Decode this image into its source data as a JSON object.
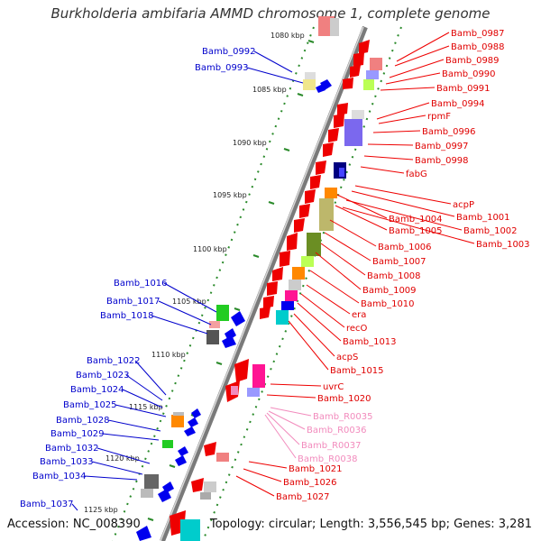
{
  "title": "Burkholderia ambifaria AMMD chromosome 1, complete genome",
  "accession": "Accession: NC_008390",
  "topology": "Topology: circular; Length: 3,556,545 bp; Genes: 3,281",
  "ruler": [
    {
      "label": "1080 kbp"
    },
    {
      "label": "1085 kbp"
    },
    {
      "label": "1090 kbp"
    },
    {
      "label": "1095 kbp"
    },
    {
      "label": "1100 kbp"
    },
    {
      "label": "1105 kbp"
    },
    {
      "label": "1110 kbp"
    },
    {
      "label": "1115 kbp"
    },
    {
      "label": "1120 kbp"
    },
    {
      "label": "1125 kbp"
    }
  ],
  "right_genes": [
    "Bamb_0987",
    "Bamb_0988",
    "Bamb_0989",
    "Bamb_0990",
    "Bamb_0991",
    "Bamb_0994",
    "rpmF",
    "Bamb_0996",
    "Bamb_0997",
    "Bamb_0998",
    "fabG",
    "acpP",
    "Bamb_1001",
    "Bamb_1002",
    "Bamb_1003",
    "Bamb_1004",
    "Bamb_1005",
    "Bamb_1006",
    "Bamb_1007",
    "Bamb_1008",
    "Bamb_1009",
    "Bamb_1010",
    "era",
    "recO",
    "Bamb_1013",
    "acpS",
    "Bamb_1015",
    "uvrC",
    "Bamb_1020",
    "Bamb_1021",
    "Bamb_1026",
    "Bamb_1027"
  ],
  "rna_genes": [
    "Bamb_R0035",
    "Bamb_R0036",
    "Bamb_R0037",
    "Bamb_R0038"
  ],
  "left_genes": [
    "Bamb_0992",
    "Bamb_0993",
    "Bamb_1016",
    "Bamb_1017",
    "Bamb_1018",
    "Bamb_1022",
    "Bamb_1023",
    "Bamb_1024",
    "Bamb_1025",
    "Bamb_1028",
    "Bamb_1029",
    "Bamb_1032",
    "Bamb_1033",
    "Bamb_1034",
    "Bamb_1037"
  ],
  "colors": {
    "forward_cds": "#ee0000",
    "reverse_cds": "#0000ee",
    "rna": "#f28bbd",
    "ruler_dots": "#2a8a2a",
    "backbone": "#888888"
  }
}
